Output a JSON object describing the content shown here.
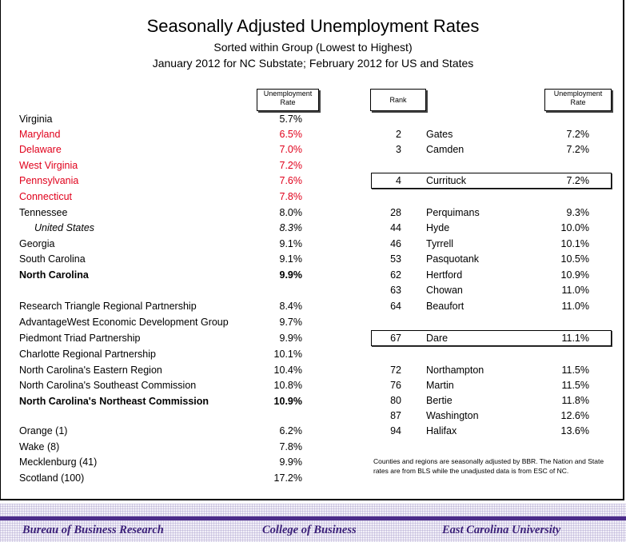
{
  "header": {
    "title": "Seasonally Adjusted Unemployment Rates",
    "subtitle": "Sorted within Group (Lowest to Highest)",
    "period": "January 2012 for NC Substate; February 2012 for US and States"
  },
  "columns": {
    "left_rate_line1": "Unemployment",
    "left_rate_line2": "Rate",
    "rank": "Rank",
    "right_rate_line1": "Unemployment",
    "right_rate_line2": "Rate"
  },
  "colors": {
    "highlight_red": "#e0001b",
    "footer_purple": "#4b2c8a"
  },
  "left_rows": [
    {
      "name": "Virginia",
      "rate": "5.7%"
    },
    {
      "name": "Maryland",
      "rate": "6.5%"
    },
    {
      "name": "Delaware",
      "rate": "7.0%"
    },
    {
      "name": "West Virginia",
      "rate": "7.2%"
    },
    {
      "name": "Pennsylvania",
      "rate": "7.6%"
    },
    {
      "name": "Connecticut",
      "rate": "7.8%"
    },
    {
      "name": "Tennessee",
      "rate": "8.0%"
    },
    {
      "name": "United States",
      "rate": "8.3%"
    },
    {
      "name": "Georgia",
      "rate": "9.1%"
    },
    {
      "name": "South Carolina",
      "rate": "9.1%"
    },
    {
      "name": "North Carolina",
      "rate": "9.9%"
    },
    {
      "name": "Research Triangle Regional Partnership",
      "rate": "8.4%"
    },
    {
      "name": "AdvantageWest Economic Development Group",
      "rate": "9.7%"
    },
    {
      "name": "Piedmont Triad Partnership",
      "rate": "9.9%"
    },
    {
      "name": "Charlotte Regional Partnership",
      "rate": "10.1%"
    },
    {
      "name": "North Carolina's Eastern Region",
      "rate": "10.4%"
    },
    {
      "name": "North Carolina's Southeast Commission",
      "rate": "10.8%"
    },
    {
      "name": "North Carolina's Northeast Commission",
      "rate": "10.9%"
    },
    {
      "name": "Orange (1)",
      "rate": "6.2%"
    },
    {
      "name": "Wake (8)",
      "rate": "7.8%"
    },
    {
      "name": "Mecklenburg (41)",
      "rate": "9.9%"
    },
    {
      "name": "Scotland (100)",
      "rate": "17.2%"
    }
  ],
  "right_rows": [
    {
      "rank": "2",
      "county": "Gates",
      "rate": "7.2%"
    },
    {
      "rank": "3",
      "county": "Camden",
      "rate": "7.2%"
    },
    {
      "rank": "4",
      "county": "Currituck",
      "rate": "7.2%"
    },
    {
      "rank": "28",
      "county": "Perquimans",
      "rate": "9.3%"
    },
    {
      "rank": "44",
      "county": "Hyde",
      "rate": "10.0%"
    },
    {
      "rank": "46",
      "county": "Tyrrell",
      "rate": "10.1%"
    },
    {
      "rank": "53",
      "county": "Pasquotank",
      "rate": "10.5%"
    },
    {
      "rank": "62",
      "county": "Hertford",
      "rate": "10.9%"
    },
    {
      "rank": "63",
      "county": "Chowan",
      "rate": "11.0%"
    },
    {
      "rank": "64",
      "county": "Beaufort",
      "rate": "11.0%"
    },
    {
      "rank": "67",
      "county": "Dare",
      "rate": "11.1%"
    },
    {
      "rank": "72",
      "county": "Northampton",
      "rate": "11.5%"
    },
    {
      "rank": "76",
      "county": "Martin",
      "rate": "11.5%"
    },
    {
      "rank": "80",
      "county": "Bertie",
      "rate": "11.8%"
    },
    {
      "rank": "87",
      "county": "Washington",
      "rate": "12.6%"
    },
    {
      "rank": "94",
      "county": "Halifax",
      "rate": "13.6%"
    }
  ],
  "note": "Counties and regions are seasonally adjusted by BBR.  The Nation and State rates are from BLS while the unadjusted data is from ESC of NC.",
  "footer": {
    "left": "Bureau of Business Research",
    "center": "College of Business",
    "right": "East Carolina University"
  }
}
